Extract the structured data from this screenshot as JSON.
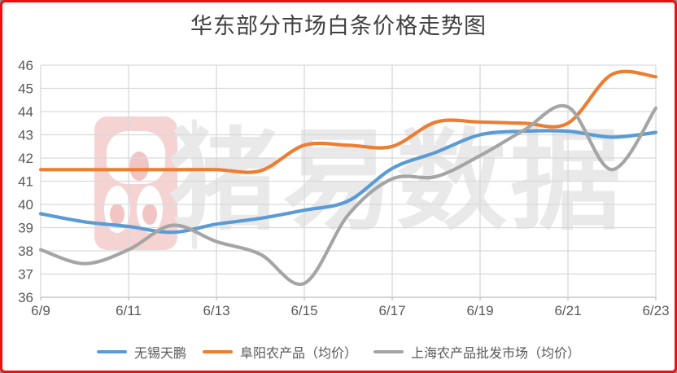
{
  "frame": {
    "border_color": "#f20d0d",
    "background": "#ffffff"
  },
  "watermark": {
    "text": "猪易数据",
    "logo_name": "zhuyi-pig-logo"
  },
  "colors": {
    "grid": "#d9d9d9",
    "axis_line": "#bfbfbf",
    "tick_text": "#595959",
    "title_text": "#404040",
    "legend_text": "#595959",
    "watermark_text": "#e9e9e9",
    "logo_pink": "#f5d3d3",
    "logo_pink_dark": "#f2c5c5",
    "separator_bar": "#eaeaea"
  },
  "chart_data": {
    "type": "line",
    "title": "华东部分市场白条价格走势图",
    "xlabel": "",
    "ylabel": "",
    "ylim": [
      36,
      46
    ],
    "y_ticks": [
      36,
      37,
      38,
      39,
      40,
      41,
      42,
      43,
      44,
      45,
      46
    ],
    "x_tick_labels": [
      "6/9",
      "6/11",
      "6/13",
      "6/15",
      "6/17",
      "6/19",
      "6/21",
      "6/23"
    ],
    "grid": true,
    "legend_position": "bottom",
    "line_style": "smooth",
    "categories": [
      "6/9",
      "6/10",
      "6/11",
      "6/12",
      "6/13",
      "6/14",
      "6/15",
      "6/16",
      "6/17",
      "6/18",
      "6/19",
      "6/20",
      "6/21",
      "6/22",
      "6/23"
    ],
    "series": [
      {
        "id": "wuxi-tianpeng",
        "name": "无锡天鹏",
        "color": "#5B9BD5",
        "values": [
          39.6,
          39.25,
          39.05,
          38.8,
          39.15,
          39.4,
          39.75,
          40.15,
          41.55,
          42.25,
          43.0,
          43.15,
          43.15,
          42.9,
          43.1
        ]
      },
      {
        "id": "fuyang-nongchanpin",
        "name": "阜阳农产品（均价）",
        "color": "#ED7D31",
        "values": [
          41.5,
          41.5,
          41.5,
          41.5,
          41.5,
          41.45,
          42.55,
          42.55,
          42.5,
          43.55,
          43.55,
          43.5,
          43.5,
          45.6,
          45.5
        ]
      },
      {
        "id": "shanghai-pifa-shichang",
        "name": "上海农产品批发市场（均价）",
        "color": "#A5A5A5",
        "values": [
          38.05,
          37.45,
          38.05,
          39.1,
          38.4,
          37.85,
          36.6,
          39.55,
          41.1,
          41.2,
          42.1,
          43.2,
          44.2,
          41.5,
          44.15
        ]
      }
    ]
  }
}
